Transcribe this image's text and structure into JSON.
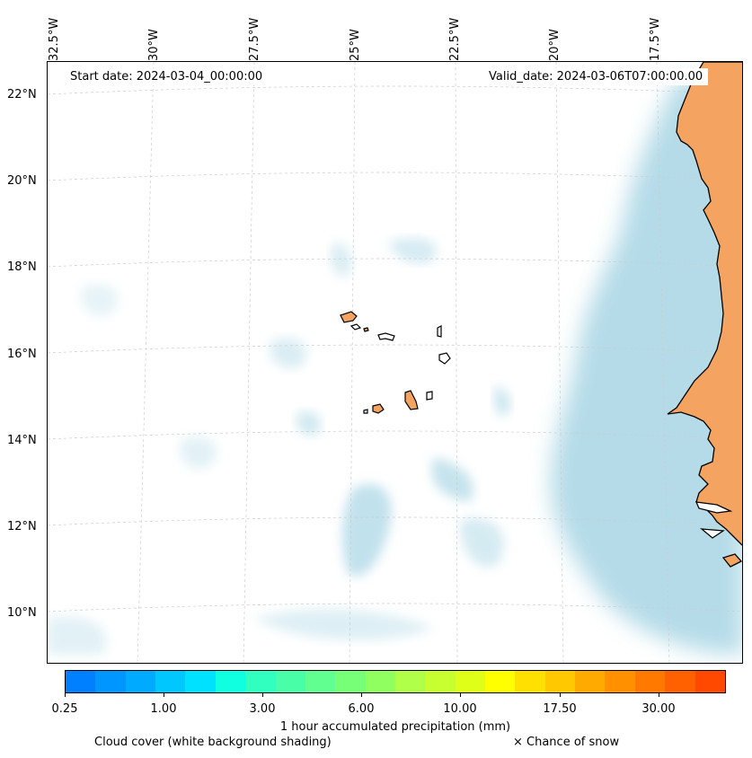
{
  "map": {
    "start_label": "Start date: 2024-03-04_00:00:00",
    "valid_label": "Valid_date: 2024-03-06T07:00:00.00",
    "lon_ticks": [
      "32.5°W",
      "30°W",
      "27.5°W",
      "25°W",
      "22.5°W",
      "20°W",
      "17.5°W"
    ],
    "lat_ticks": [
      "22°N",
      "20°N",
      "18°N",
      "16°N",
      "14°N",
      "12°N",
      "10°N"
    ],
    "land_color": "#f4a460",
    "cloud_color": "#add8e6"
  },
  "legend": {
    "colorbar_colors": [
      "#0080ff",
      "#0096ff",
      "#00aaff",
      "#00c8ff",
      "#00e0ff",
      "#10ffe0",
      "#30ffc0",
      "#48ffa8",
      "#60ff90",
      "#78ff78",
      "#90ff60",
      "#b0ff48",
      "#c8ff30",
      "#e0ff18",
      "#ffff00",
      "#ffe000",
      "#ffc800",
      "#ffaa00",
      "#ff9000",
      "#ff7800",
      "#ff6000",
      "#ff4800"
    ],
    "tick_labels": [
      "0.25",
      "1.00",
      "3.00",
      "6.00",
      "10.00",
      "17.50",
      "30.00"
    ],
    "title": "1 hour accumulated precipitation (mm)",
    "cloud_note": "Cloud cover (white background shading)",
    "snow_note": "× Chance of snow"
  }
}
